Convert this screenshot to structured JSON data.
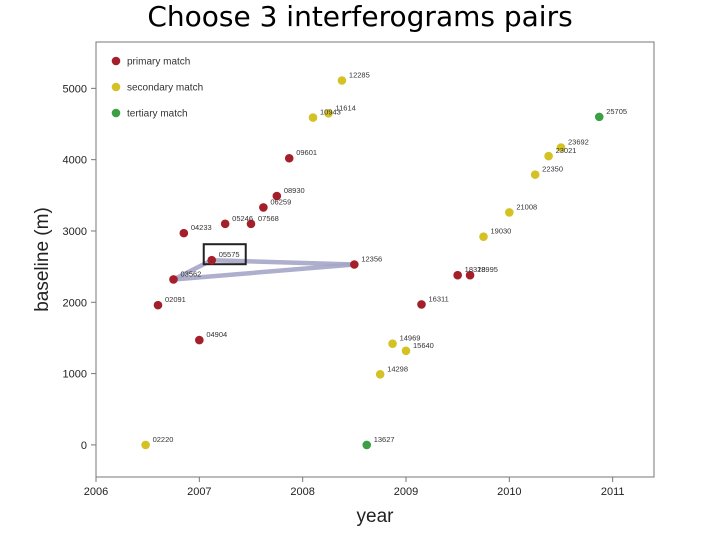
{
  "slide_title": "Choose 3 interferograms pairs",
  "colors": {
    "primary": "#a3202a",
    "secondary": "#d4c225",
    "tertiary": "#3aa043",
    "pair_line": "#a6a6c8",
    "selection_box": "#222222"
  },
  "chart_data": {
    "type": "scatter",
    "xlabel": "year",
    "ylabel": "baseline (m)",
    "xlim": [
      2006,
      2011.4
    ],
    "ylim": [
      -450,
      5650
    ],
    "xticks": [
      2006,
      2007,
      2008,
      2009,
      2010,
      2011
    ],
    "yticks": [
      0,
      1000,
      2000,
      3000,
      4000,
      5000
    ],
    "legend": {
      "position": "top-left"
    },
    "series": [
      {
        "name": "primary match",
        "color": "#a3202a",
        "points": [
          {
            "x": 2006.6,
            "y": 1960,
            "label": "02091"
          },
          {
            "x": 2006.75,
            "y": 2320,
            "label": "03562"
          },
          {
            "x": 2006.85,
            "y": 2970,
            "label": "04233"
          },
          {
            "x": 2007.0,
            "y": 1470,
            "label": "04904"
          },
          {
            "x": 2007.12,
            "y": 2590,
            "label": "05575"
          },
          {
            "x": 2007.25,
            "y": 3100,
            "label": "05246"
          },
          {
            "x": 2007.5,
            "y": 3100,
            "label": "07568"
          },
          {
            "x": 2007.62,
            "y": 3330,
            "label": "06259"
          },
          {
            "x": 2007.75,
            "y": 3490,
            "label": "08930"
          },
          {
            "x": 2007.87,
            "y": 4020,
            "label": "09601"
          },
          {
            "x": 2008.5,
            "y": 2530,
            "label": "12356"
          },
          {
            "x": 2009.15,
            "y": 1970,
            "label": "16311"
          },
          {
            "x": 2009.5,
            "y": 2380,
            "label": "18328"
          },
          {
            "x": 2009.62,
            "y": 2380,
            "label": "18995"
          }
        ]
      },
      {
        "name": "secondary match",
        "color": "#d4c225",
        "points": [
          {
            "x": 2006.48,
            "y": 0,
            "label": "02220"
          },
          {
            "x": 2008.1,
            "y": 4590,
            "label": "10943"
          },
          {
            "x": 2008.25,
            "y": 4650,
            "label": "11614"
          },
          {
            "x": 2008.38,
            "y": 5110,
            "label": "12285"
          },
          {
            "x": 2008.75,
            "y": 990,
            "label": "14298"
          },
          {
            "x": 2008.87,
            "y": 1420,
            "label": "14969"
          },
          {
            "x": 2009.0,
            "y": 1320,
            "label": "15640"
          },
          {
            "x": 2009.75,
            "y": 2920,
            "label": "19030"
          },
          {
            "x": 2010.0,
            "y": 3260,
            "label": "21008"
          },
          {
            "x": 2010.25,
            "y": 3790,
            "label": "22350"
          },
          {
            "x": 2010.38,
            "y": 4050,
            "label": "23021"
          },
          {
            "x": 2010.5,
            "y": 4170,
            "label": "23692"
          }
        ]
      },
      {
        "name": "tertiary match",
        "color": "#3aa043",
        "points": [
          {
            "x": 2008.62,
            "y": 0,
            "label": "13627"
          },
          {
            "x": 2010.87,
            "y": 4600,
            "label": "25705"
          }
        ]
      }
    ],
    "pairs": [
      {
        "from": "03562",
        "to": "05575"
      },
      {
        "from": "05575",
        "to": "12356"
      },
      {
        "from": "03562",
        "to": "12356"
      }
    ],
    "highlight": "05575"
  }
}
